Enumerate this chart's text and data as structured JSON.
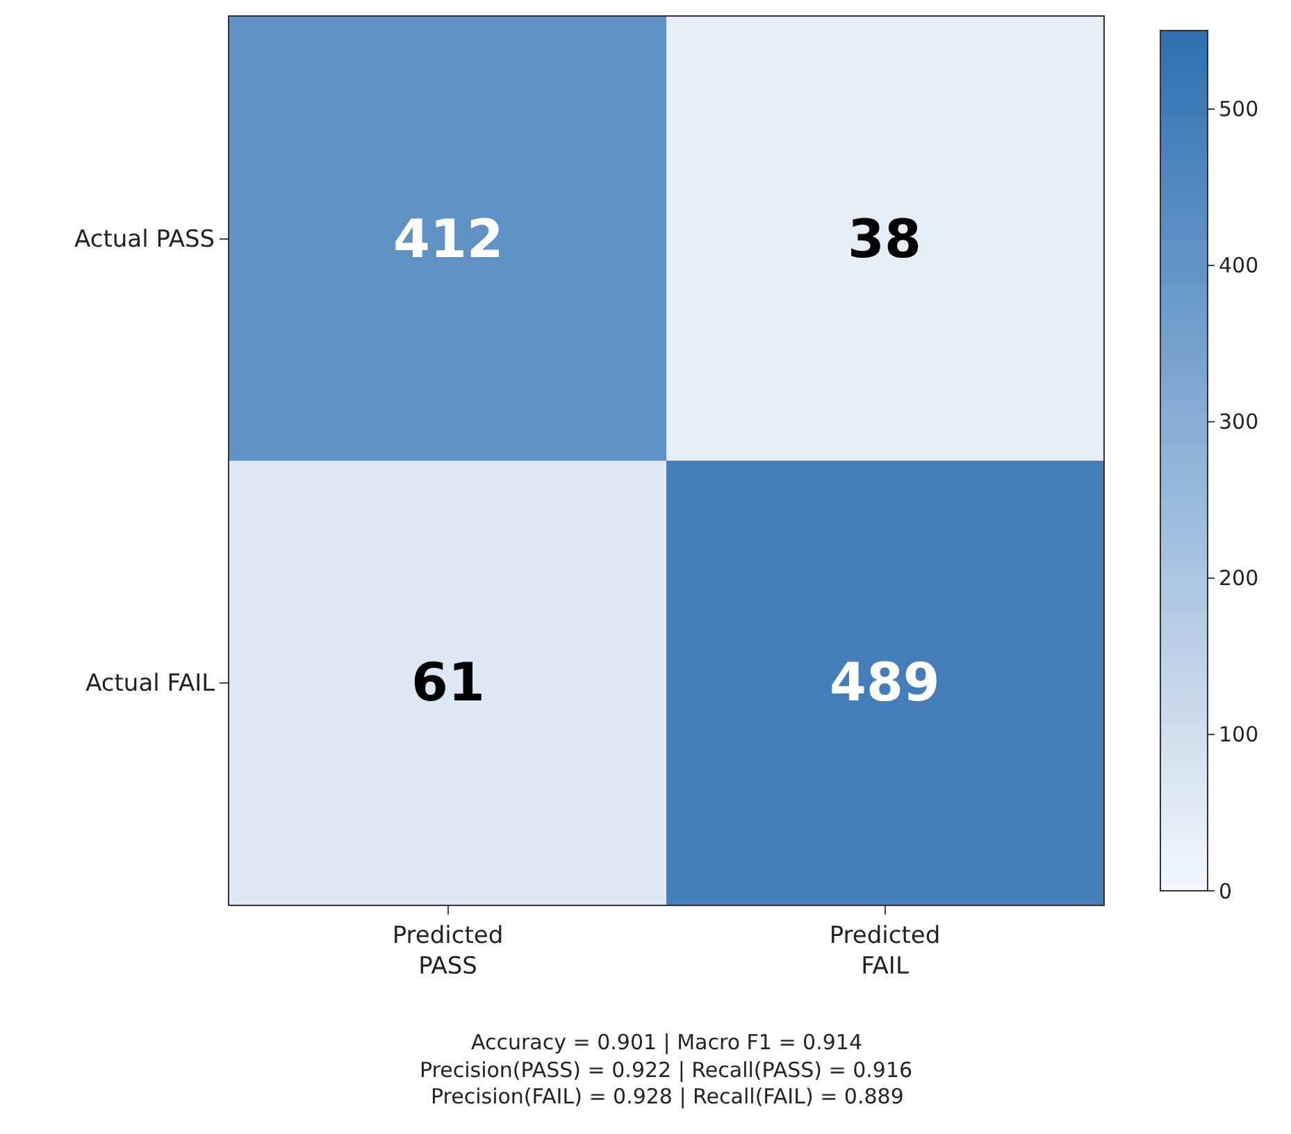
{
  "chart_data": {
    "type": "heatmap",
    "categories": [
      "Predicted\nPASS",
      "Predicted\nFAIL"
    ],
    "y_categories": [
      "Actual PASS",
      "Actual FAIL"
    ],
    "cells": [
      [
        412,
        38
      ],
      [
        61,
        489
      ]
    ],
    "data_labels": true,
    "clim": [
      0,
      550
    ],
    "cticks": [
      0,
      100,
      200,
      300,
      400,
      500
    ],
    "annotations": [
      "Accuracy = 0.901 | Macro F1 = 0.914",
      "Precision(PASS) = 0.922 | Recall(PASS) = 0.916",
      "Precision(FAIL) = 0.928 | Recall(FAIL) = 0.889"
    ]
  }
}
